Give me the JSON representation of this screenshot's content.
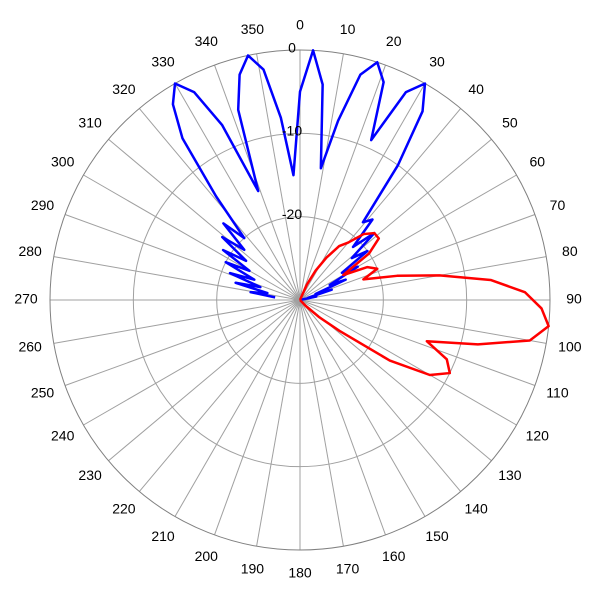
{
  "chart_data": {
    "type": "polar",
    "direction": "clockwise",
    "zero": "top",
    "rlim": [
      -30,
      0
    ],
    "rticks": [
      0,
      -10,
      -20
    ],
    "thetaticks": [
      0,
      10,
      20,
      30,
      40,
      50,
      60,
      70,
      80,
      90,
      100,
      110,
      120,
      130,
      140,
      150,
      160,
      170,
      180,
      190,
      200,
      210,
      220,
      230,
      240,
      250,
      260,
      270,
      280,
      290,
      300,
      310,
      320,
      330,
      340,
      350
    ],
    "grid": true,
    "series": [
      {
        "color": "#0000ff",
        "theta": [
          276,
          279,
          282,
          285,
          288,
          291,
          294,
          297,
          300,
          303,
          306,
          309,
          312,
          315,
          318,
          321,
          324,
          327,
          330,
          333,
          336,
          339,
          342,
          345,
          348,
          351,
          354,
          357,
          0,
          3,
          6,
          9,
          12,
          15,
          18,
          21,
          24,
          27,
          30,
          33,
          36,
          39,
          42,
          45,
          48,
          51,
          54,
          57,
          60,
          63,
          66,
          69,
          72,
          75,
          78,
          81,
          84
        ],
        "values": [
          -27,
          -24,
          -26,
          -22,
          -25,
          -21,
          -24,
          -20,
          -23,
          -19,
          -22,
          -18,
          -21,
          -17,
          -20,
          -14,
          -6,
          -2,
          0,
          -2,
          -7,
          -16,
          -6,
          -2,
          0,
          -2,
          -8,
          -15,
          -5,
          0,
          -4,
          -14,
          -8,
          -2,
          0,
          -2,
          -9,
          -2,
          0,
          -3,
          -10,
          -18,
          -17,
          -21,
          -18,
          -22,
          -20,
          -24,
          -22,
          -26,
          -24,
          -28,
          -26,
          -29,
          -28,
          -30,
          -30
        ]
      },
      {
        "color": "#ff0000",
        "theta": [
          20,
          24,
          28,
          32,
          36,
          40,
          44,
          48,
          52,
          56,
          60,
          64,
          68,
          72,
          76,
          80,
          84,
          88,
          92,
          96,
          100,
          104,
          108,
          112,
          116,
          120,
          124,
          128,
          132,
          136,
          140,
          144,
          148
        ],
        "values": [
          -30,
          -28,
          -26,
          -24,
          -22,
          -21,
          -19,
          -18,
          -18,
          -20,
          -24,
          -21,
          -20,
          -22,
          -18,
          -13,
          -7,
          -3,
          -1,
          0,
          -2,
          -8,
          -14,
          -11,
          -10,
          -12,
          -17,
          -24,
          -27,
          -29,
          -30,
          -30,
          -30
        ]
      }
    ]
  }
}
